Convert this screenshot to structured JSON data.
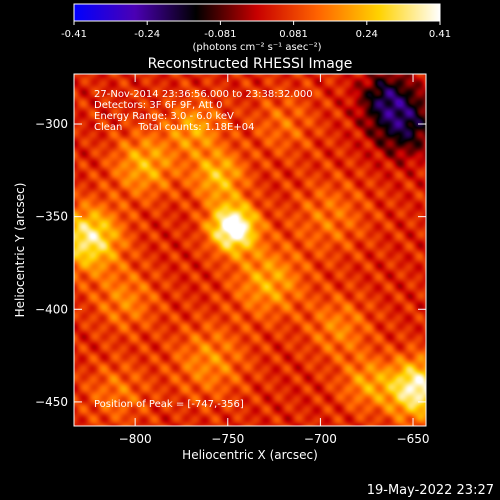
{
  "colorbar": {
    "min": -0.41,
    "max": 0.41,
    "ticks": [
      "-0.41",
      "-0.24",
      "-0.081",
      "0.081",
      "0.24",
      "0.41"
    ],
    "units": "(photons cm⁻² s⁻¹ asec⁻²)",
    "stops": [
      "#0000ff",
      "#4b00b4",
      "#000000",
      "#c80000",
      "#ff6400",
      "#ffd200",
      "#ffffff"
    ]
  },
  "chart_data": {
    "type": "heatmap",
    "title": "Reconstructed RHESSI Image",
    "xlabel": "Heliocentric X (arcsec)",
    "ylabel": "Heliocentric Y (arcsec)",
    "xlim": [
      -833,
      -643
    ],
    "ylim": [
      -463,
      -273
    ],
    "xticks": [
      -800,
      -750,
      -700,
      -650
    ],
    "yticks": [
      -300,
      -350,
      -400,
      -450
    ],
    "xtick_labels": [
      "−800",
      "−750",
      "−700",
      "−650"
    ],
    "ytick_labels": [
      "−300",
      "−350",
      "−400",
      "−450"
    ],
    "annotations": [
      "27-Nov-2014 23:36:56.000 to 23:38:32.000",
      "Detectors: 3F 6F 9F, Att 0",
      "Energy Range: 3.0 - 6.0 keV",
      "Clean     Total counts: 1.18E+04"
    ],
    "peak_label": "Position of Peak = [-747,-356]",
    "peak": [
      -747,
      -356
    ],
    "sources": [
      {
        "x": -747,
        "y": -356,
        "flux": 0.41,
        "sigma": 9
      },
      {
        "x": -825,
        "y": -362,
        "flux": 0.3,
        "sigma": 12
      },
      {
        "x": -648,
        "y": -443,
        "flux": 0.34,
        "sigma": 11
      },
      {
        "x": -755,
        "y": -328,
        "flux": 0.2,
        "sigma": 10
      },
      {
        "x": -768,
        "y": -302,
        "flux": 0.16,
        "sigma": 10
      },
      {
        "x": -795,
        "y": -322,
        "flux": 0.18,
        "sigma": 12
      },
      {
        "x": -728,
        "y": -385,
        "flux": 0.17,
        "sigma": 13
      },
      {
        "x": -760,
        "y": -428,
        "flux": 0.13,
        "sigma": 14
      },
      {
        "x": -690,
        "y": -410,
        "flux": 0.12,
        "sigma": 12
      },
      {
        "x": -675,
        "y": -440,
        "flux": 0.14,
        "sigma": 10
      },
      {
        "x": -805,
        "y": -395,
        "flux": 0.12,
        "sigma": 12
      },
      {
        "x": -695,
        "y": -350,
        "flux": 0.1,
        "sigma": 14
      },
      {
        "x": -810,
        "y": -445,
        "flux": 0.1,
        "sigma": 12
      },
      {
        "x": -720,
        "y": -300,
        "flux": 0.09,
        "sigma": 12
      },
      {
        "x": -655,
        "y": -300,
        "flux": -0.22,
        "sigma": 12
      },
      {
        "x": -665,
        "y": -285,
        "flux": -0.18,
        "sigma": 10
      }
    ],
    "background_flux": 0.05,
    "ripple_amplitude": 0.09,
    "ripple_period_arcsec": 11
  },
  "footer": {
    "date": "19-May-2022 23:27"
  }
}
